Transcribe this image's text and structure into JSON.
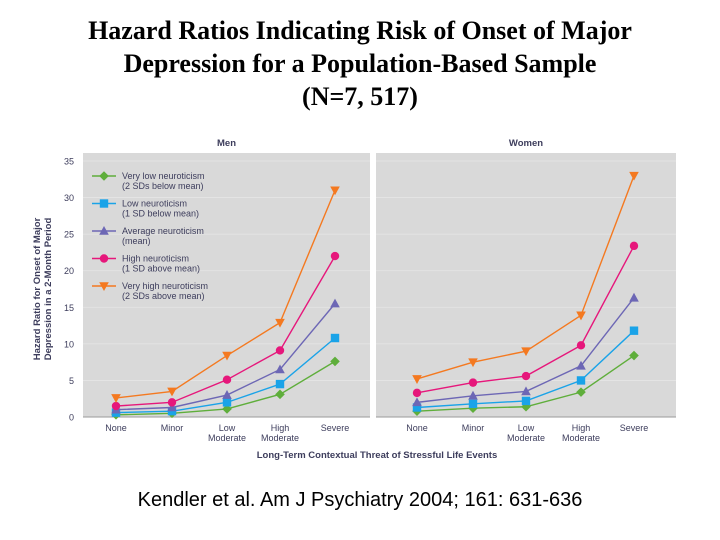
{
  "title_lines": [
    "Hazard Ratios Indicating Risk of Onset of Major",
    "Depression for a Population-Based Sample",
    "(N=7, 517)"
  ],
  "citation": "Kendler et al. Am J Psychiatry 2004; 161: 631-636",
  "colors": {
    "panel_bg": "#d9d9d9",
    "axis_text": "#3d3d5c",
    "very_low": "#5fae3b",
    "low": "#1aa3e8",
    "average": "#6d67b5",
    "high": "#e6177b",
    "very_high": "#f47920"
  },
  "chart_data": {
    "type": "line",
    "ylabel_lines": [
      "Hazard Ratio for Onset of Major",
      "Depression in a 2-Month Period"
    ],
    "xlabel": "Long-Term Contextual Threat of Stressful Life Events",
    "ylim": [
      0,
      35
    ],
    "yticks": [
      "0",
      "5",
      "10",
      "15",
      "20",
      "25",
      "30",
      "35"
    ],
    "ytick_values": [
      0,
      5,
      10,
      15,
      20,
      25,
      30,
      35
    ],
    "categories": [
      [
        "None"
      ],
      [
        "Minor"
      ],
      [
        "Low",
        "Moderate"
      ],
      [
        "High",
        "Moderate"
      ],
      [
        "Severe"
      ]
    ],
    "legend": [
      {
        "key": "very_low",
        "line1": "Very low neuroticism",
        "line2": "(2 SDs below mean)",
        "marker": "diamond"
      },
      {
        "key": "low",
        "line1": "Low neuroticism",
        "line2": "(1 SD below mean)",
        "marker": "square"
      },
      {
        "key": "average",
        "line1": "Average neuroticism",
        "line2": "(mean)",
        "marker": "triangle-up"
      },
      {
        "key": "high",
        "line1": "High neuroticism",
        "line2": "(1 SD above mean)",
        "marker": "circle"
      },
      {
        "key": "very_high",
        "line1": "Very high neuroticism",
        "line2": "(2 SDs above mean)",
        "marker": "triangle-down"
      }
    ],
    "panels": [
      {
        "title": "Men",
        "series": [
          {
            "key": "very_low",
            "values": [
              0.3,
              0.5,
              1.1,
              3.1,
              7.6
            ]
          },
          {
            "key": "low",
            "values": [
              0.6,
              0.8,
              2.0,
              4.5,
              10.8
            ]
          },
          {
            "key": "average",
            "values": [
              1.0,
              1.3,
              3.0,
              6.5,
              15.5
            ]
          },
          {
            "key": "high",
            "values": [
              1.5,
              2.0,
              5.1,
              9.1,
              22.0
            ]
          },
          {
            "key": "very_high",
            "values": [
              2.6,
              3.5,
              8.4,
              12.9,
              31.0
            ]
          }
        ]
      },
      {
        "title": "Women",
        "series": [
          {
            "key": "very_low",
            "values": [
              0.8,
              1.2,
              1.4,
              3.4,
              8.4
            ]
          },
          {
            "key": "low",
            "values": [
              1.3,
              1.8,
              2.2,
              5.0,
              11.8
            ]
          },
          {
            "key": "average",
            "values": [
              2.0,
              2.9,
              3.5,
              7.0,
              16.3
            ]
          },
          {
            "key": "high",
            "values": [
              3.3,
              4.7,
              5.6,
              9.8,
              23.4
            ]
          },
          {
            "key": "very_high",
            "values": [
              5.2,
              7.5,
              9.0,
              13.9,
              33.0
            ]
          }
        ]
      }
    ]
  }
}
